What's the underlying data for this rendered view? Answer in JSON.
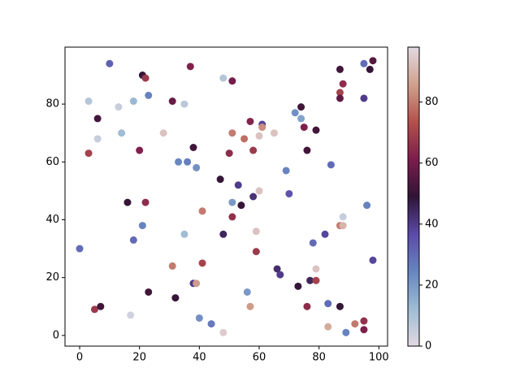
{
  "chart_data": {
    "type": "scatter",
    "x": [
      10,
      0,
      3,
      3,
      6,
      6,
      5,
      7,
      13,
      14,
      18,
      16,
      17,
      18,
      21,
      22,
      23,
      20,
      21,
      22,
      23,
      28,
      31,
      31,
      32,
      33,
      35,
      36,
      37,
      38,
      38,
      39,
      35,
      39,
      41,
      41,
      40,
      44,
      48,
      48,
      47,
      48,
      50,
      51,
      51,
      51,
      51,
      53,
      54,
      55,
      56,
      57,
      57,
      58,
      58,
      59,
      60,
      60,
      61,
      61,
      59,
      65,
      66,
      67,
      69,
      70,
      72,
      73,
      74,
      74,
      75,
      76,
      76,
      77,
      79,
      78,
      79,
      79,
      82,
      83,
      83,
      84,
      87,
      87,
      87,
      88,
      87,
      88,
      88,
      87,
      89,
      92,
      95,
      95,
      95,
      95,
      96,
      97,
      98,
      98
    ],
    "y": [
      94,
      30,
      81,
      63,
      75,
      68,
      9,
      10,
      79,
      70,
      81,
      46,
      7,
      33,
      90,
      89,
      83,
      64,
      38,
      46,
      15,
      70,
      81,
      24,
      13,
      60,
      80,
      60,
      93,
      65,
      18,
      58,
      35,
      18,
      43,
      25,
      6,
      4,
      89,
      1,
      54,
      35,
      63,
      70,
      88,
      46,
      41,
      52,
      45,
      68,
      15,
      74,
      10,
      64,
      48,
      29,
      50,
      69,
      73,
      72,
      36,
      70,
      23,
      21,
      57,
      49,
      77,
      17,
      79,
      75,
      72,
      10,
      64,
      19,
      19,
      32,
      71,
      23,
      35,
      11,
      3,
      59,
      92,
      84,
      82,
      87,
      38,
      38,
      41,
      10,
      1,
      4,
      94,
      82,
      5,
      2,
      45,
      92,
      95,
      26
    ],
    "c": [
      32,
      30,
      8,
      70,
      52,
      5,
      68,
      52,
      5,
      12,
      13,
      50,
      3,
      30,
      50,
      68,
      25,
      62,
      25,
      65,
      52,
      93,
      58,
      80,
      50,
      24,
      7,
      26,
      62,
      52,
      40,
      22,
      12,
      85,
      80,
      70,
      22,
      27,
      8,
      95,
      50,
      45,
      65,
      80,
      60,
      20,
      66,
      40,
      50,
      78,
      20,
      63,
      85,
      68,
      42,
      68,
      93,
      93,
      38,
      83,
      93,
      93,
      43,
      40,
      25,
      35,
      22,
      50,
      52,
      18,
      62,
      65,
      52,
      45,
      70,
      30,
      52,
      93,
      38,
      30,
      88,
      30,
      52,
      70,
      57,
      65,
      80,
      90,
      5,
      50,
      25,
      80,
      30,
      40,
      66,
      62,
      25,
      50,
      55,
      38
    ],
    "xlim": [
      -4.9,
      102.9
    ],
    "ylim": [
      -3.7,
      99.7
    ],
    "xticks": [
      0,
      20,
      40,
      60,
      80,
      100
    ],
    "yticks": [
      0,
      20,
      40,
      60,
      80
    ],
    "clim": [
      0,
      98
    ],
    "cticks": [
      0,
      20,
      40,
      60,
      80
    ],
    "colormap": [
      "#e2d9e2",
      "#9ebcd4",
      "#6785c0",
      "#5c4aa9",
      "#2f1436",
      "#7c1d4c",
      "#b4514d",
      "#d0a18e",
      "#e2d9e2"
    ]
  }
}
